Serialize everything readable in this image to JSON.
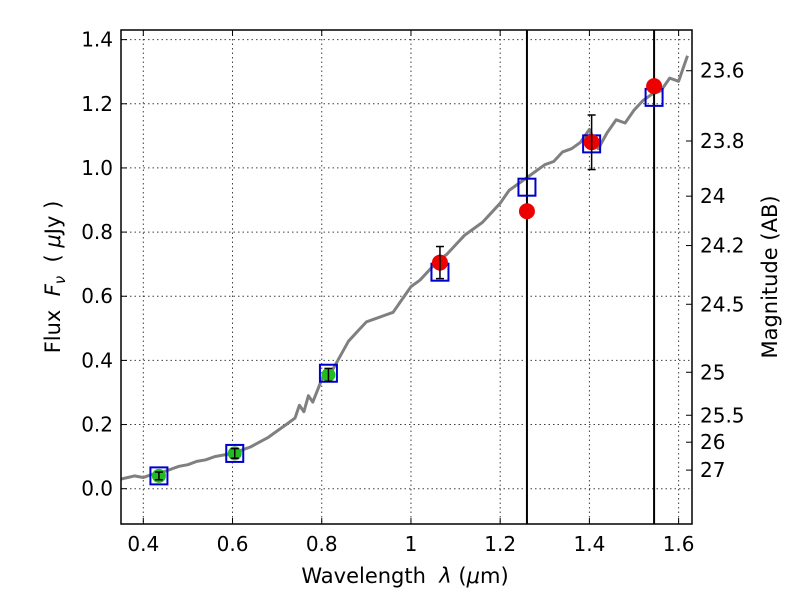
{
  "chart_data": {
    "type": "scatter",
    "x_label": "Wavelength  λ (μm)",
    "y_label": "Flux  F_ν  ( μJy )",
    "y2_label": "Magnitude (AB)",
    "xlim": [
      0.35,
      1.63
    ],
    "ylim": [
      -0.11,
      1.43
    ],
    "grid": true,
    "x_ticks": [
      0.4,
      0.6,
      0.8,
      1.0,
      1.2,
      1.4,
      1.6
    ],
    "x_tick_labels": [
      "0.4",
      "0.6",
      "0.8",
      "1",
      "1.2",
      "1.4",
      "1.6"
    ],
    "y_ticks": [
      0.0,
      0.2,
      0.4,
      0.6,
      0.8,
      1.0,
      1.2,
      1.4
    ],
    "y_tick_labels": [
      "0.0",
      "0.2",
      "0.4",
      "0.6",
      "0.8",
      "1.0",
      "1.2",
      "1.4"
    ],
    "y2_ticks": [
      {
        "label": "23.6",
        "flux": 1.303
      },
      {
        "label": "23.8",
        "flux": 1.084
      },
      {
        "label": "24",
        "flux": 0.912
      },
      {
        "label": "24.2",
        "flux": 0.758
      },
      {
        "label": "24.5",
        "flux": 0.575
      },
      {
        "label": "25",
        "flux": 0.363
      },
      {
        "label": "25.5",
        "flux": 0.229
      },
      {
        "label": "26",
        "flux": 0.145
      },
      {
        "label": "27",
        "flux": 0.058
      }
    ],
    "vertical_lines": [
      1.26,
      1.545
    ],
    "colors": {
      "spectrum": "#808080",
      "model_squares": "#0000cc",
      "green_points": "#22bb22",
      "red_points": "#ee0000",
      "error_bars": "#000000"
    },
    "spectrum": {
      "x": [
        0.35,
        0.38,
        0.4,
        0.42,
        0.44,
        0.46,
        0.48,
        0.5,
        0.52,
        0.54,
        0.56,
        0.58,
        0.6,
        0.62,
        0.64,
        0.66,
        0.68,
        0.7,
        0.72,
        0.74,
        0.75,
        0.76,
        0.77,
        0.78,
        0.8,
        0.82,
        0.84,
        0.86,
        0.88,
        0.9,
        0.92,
        0.94,
        0.96,
        0.98,
        1.0,
        1.02,
        1.04,
        1.06,
        1.08,
        1.1,
        1.12,
        1.14,
        1.16,
        1.18,
        1.2,
        1.22,
        1.24,
        1.26,
        1.28,
        1.3,
        1.32,
        1.34,
        1.36,
        1.38,
        1.4,
        1.42,
        1.44,
        1.46,
        1.48,
        1.5,
        1.52,
        1.54,
        1.56,
        1.58,
        1.6,
        1.62
      ],
      "y": [
        0.03,
        0.04,
        0.035,
        0.045,
        0.05,
        0.06,
        0.07,
        0.075,
        0.085,
        0.09,
        0.1,
        0.105,
        0.11,
        0.12,
        0.13,
        0.145,
        0.16,
        0.18,
        0.2,
        0.22,
        0.26,
        0.24,
        0.29,
        0.27,
        0.34,
        0.36,
        0.41,
        0.46,
        0.49,
        0.52,
        0.53,
        0.54,
        0.55,
        0.59,
        0.63,
        0.65,
        0.68,
        0.71,
        0.73,
        0.76,
        0.79,
        0.81,
        0.83,
        0.86,
        0.89,
        0.93,
        0.95,
        0.97,
        0.99,
        1.01,
        1.02,
        1.05,
        1.06,
        1.08,
        1.12,
        1.06,
        1.11,
        1.15,
        1.14,
        1.18,
        1.21,
        1.23,
        1.24,
        1.28,
        1.27,
        1.35
      ]
    },
    "model_points": {
      "x": [
        0.435,
        0.605,
        0.815,
        1.065,
        1.26,
        1.405,
        1.545
      ],
      "y": [
        0.04,
        0.11,
        0.36,
        0.675,
        0.94,
        1.075,
        1.22
      ]
    },
    "green_points": {
      "x": [
        0.435,
        0.605,
        0.815
      ],
      "y": [
        0.04,
        0.11,
        0.355
      ],
      "err": [
        0.012,
        0.015,
        0.02
      ]
    },
    "red_points": {
      "x": [
        1.065,
        1.26,
        1.405,
        1.545
      ],
      "y": [
        0.705,
        0.865,
        1.08,
        1.255
      ],
      "err": [
        0.05,
        0,
        0.085,
        0
      ]
    }
  }
}
